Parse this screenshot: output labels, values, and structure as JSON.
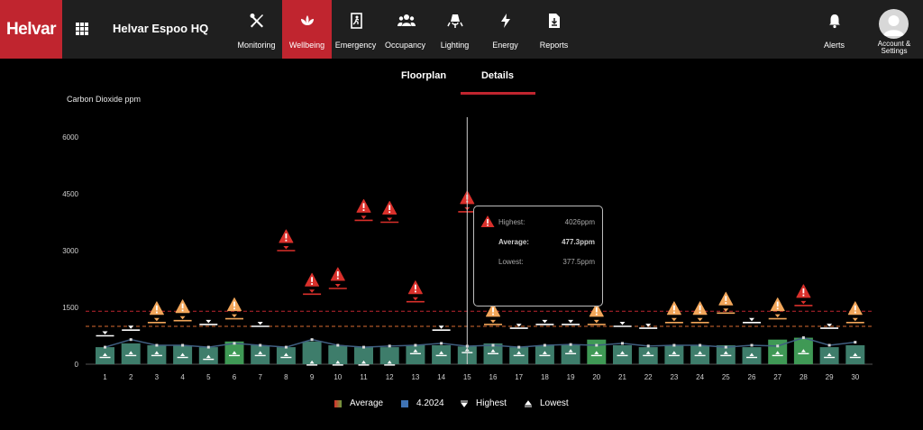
{
  "app": {
    "brand": "Helvar",
    "site_name": "Helvar Espoo HQ"
  },
  "nav": [
    {
      "label": "Monitoring",
      "icon": "tools-icon",
      "active": false
    },
    {
      "label": "Wellbeing",
      "icon": "lotus-icon",
      "active": true
    },
    {
      "label": "Emergency",
      "icon": "emergency-exit-icon",
      "active": false
    },
    {
      "label": "Occupancy",
      "icon": "people-icon",
      "active": false
    },
    {
      "label": "Lighting",
      "icon": "lighting-icon",
      "active": false
    },
    {
      "label": "Energy",
      "icon": "lightning-icon",
      "active": false
    },
    {
      "label": "Reports",
      "icon": "report-download-icon",
      "active": false
    }
  ],
  "alerts": {
    "label": "Alerts",
    "icon": "bell-icon"
  },
  "account": {
    "label_line1": "Account &",
    "label_line2": "Settings",
    "icon": "avatar-icon"
  },
  "tabs": [
    {
      "label": "Floorplan",
      "selected": false
    },
    {
      "label": "Details",
      "selected": true
    }
  ],
  "colors": {
    "brand_red": "#c0252f",
    "bar_green": "#3f9955",
    "bar_teal": "#3e7d6b",
    "highest_warn": "#f2a65a",
    "highest_alarm": "#d9302b",
    "line_blue": "#3f5e80",
    "threshold_orange": "#d96a2f",
    "threshold_red": "#c0252f"
  },
  "tooltip": {
    "icon": "warning-icon",
    "highest_label": "Highest:",
    "highest_value": "4026ppm",
    "average_label": "Average:",
    "average_value": "477.3ppm",
    "lowest_label": "Lowest:",
    "lowest_value": "377.5ppm"
  },
  "legend": {
    "average": "Average",
    "month": "4.2024",
    "highest": "Highest",
    "lowest": "Lowest"
  },
  "chart_data": {
    "type": "bar",
    "title": "Carbon Dioxide ppm",
    "ylim": [
      0,
      6000
    ],
    "yticks": [
      0,
      1500,
      3000,
      4500,
      6000
    ],
    "thresholds": [
      1000,
      1400
    ],
    "categories": [
      "1",
      "2",
      "3",
      "4",
      "5",
      "6",
      "7",
      "8",
      "9",
      "10",
      "11",
      "12",
      "13",
      "14",
      "15",
      "16",
      "17",
      "18",
      "19",
      "20",
      "21",
      "22",
      "23",
      "24",
      "25",
      "26",
      "27",
      "28",
      "29",
      "30"
    ],
    "selected_category": "15",
    "series": [
      {
        "name": "Average",
        "values": [
          450,
          650,
          500,
          500,
          450,
          550,
          500,
          450,
          650,
          500,
          450,
          480,
          500,
          550,
          477.3,
          500,
          450,
          500,
          520,
          500,
          550,
          480,
          500,
          500,
          450,
          500,
          480,
          700,
          500,
          580
        ]
      },
      {
        "name": "Highest",
        "values": [
          750,
          900,
          1100,
          1150,
          1050,
          1200,
          1000,
          3000,
          1850,
          2000,
          3800,
          3750,
          1650,
          900,
          4026,
          1050,
          950,
          1050,
          1050,
          1050,
          1000,
          950,
          1100,
          1100,
          1350,
          1100,
          1200,
          1550,
          950,
          1100
        ],
        "warning": [
          false,
          false,
          "high",
          "high",
          false,
          "high",
          false,
          "alarm",
          "alarm",
          "alarm",
          "alarm",
          "alarm",
          "alarm",
          false,
          "alarm",
          "high",
          false,
          false,
          false,
          "high",
          false,
          false,
          "high",
          "high",
          "high",
          false,
          "high",
          "alarm",
          false,
          "high"
        ]
      },
      {
        "name": "Lowest",
        "values": [
          250,
          300,
          300,
          250,
          200,
          300,
          300,
          250,
          50,
          50,
          50,
          50,
          350,
          300,
          377.5,
          350,
          300,
          300,
          350,
          300,
          300,
          300,
          300,
          300,
          300,
          250,
          300,
          350,
          250,
          250
        ]
      },
      {
        "name": "4.2024",
        "values": [
          450,
          550,
          500,
          500,
          450,
          600,
          500,
          450,
          600,
          500,
          450,
          450,
          500,
          500,
          470,
          550,
          450,
          500,
          500,
          650,
          500,
          450,
          500,
          500,
          500,
          450,
          650,
          700,
          450,
          500
        ],
        "highlighted": [
          false,
          false,
          false,
          false,
          false,
          true,
          false,
          false,
          false,
          false,
          false,
          false,
          false,
          false,
          false,
          false,
          false,
          false,
          false,
          true,
          false,
          false,
          false,
          false,
          false,
          false,
          true,
          true,
          false,
          false
        ]
      }
    ]
  }
}
